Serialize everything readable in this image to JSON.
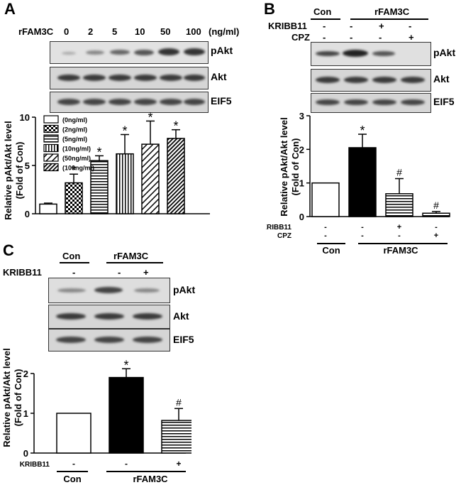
{
  "panels": {
    "A": {
      "letter": "A",
      "treatment_label": "rFAM3C",
      "doses": [
        "0",
        "2",
        "5",
        "10",
        "50",
        "100"
      ],
      "dose_unit": "(ng/ml)",
      "blot_labels": [
        "pAkt",
        "Akt",
        "EIF5"
      ],
      "ylabel_line1": "Relative pAkt/Akt level",
      "ylabel_line2": "(Fold of Con)"
    },
    "B": {
      "letter": "B",
      "con_label": "Con",
      "rfam3c_label": "rFAM3C",
      "kribb11_label": "KRIBB11",
      "cpz_label": "CPZ",
      "kribb11_signs": [
        "-",
        "-",
        "+",
        "-"
      ],
      "cpz_signs": [
        "-",
        "-",
        "-",
        "+"
      ],
      "blot_labels": [
        "pAkt",
        "Akt",
        "EIF5"
      ],
      "ylabel_line1": "Relative pAkt/Akt level",
      "ylabel_line2": "(Fold of Con)",
      "bottom_kribb11": "KRIBB11",
      "bottom_cpz": "CPZ",
      "bottom_con": "Con",
      "bottom_rfam3c": "rFAM3C"
    },
    "C": {
      "letter": "C",
      "con_label": "Con",
      "rfam3c_label": "rFAM3C",
      "kribb11_label": "KRIBB11",
      "kribb11_signs": [
        "-",
        "-",
        "+"
      ],
      "blot_labels": [
        "pAkt",
        "Akt",
        "EIF5"
      ],
      "ylabel_line1": "Relative pAkt/Akt level",
      "ylabel_line2": "(Fold of Con)",
      "bottom_kribb11": "KRIBB11",
      "bottom_con": "Con",
      "bottom_rfam3c": "rFAM3C"
    }
  },
  "chart_data": [
    {
      "panel": "A",
      "type": "bar",
      "categories": [
        "(0ng/ml)",
        "(2ng/ml)",
        "(5ng/ml)",
        "(10ng/ml)",
        "(50ng/ml)",
        "(100ng/ml)"
      ],
      "values": [
        1.0,
        3.2,
        5.5,
        6.2,
        7.2,
        7.8
      ],
      "errors": [
        0.1,
        0.9,
        0.5,
        2.0,
        2.4,
        0.9
      ],
      "annotations": [
        "",
        "*",
        "*",
        "*",
        "*",
        "*"
      ],
      "patterns": [
        "white",
        "checker",
        "hlines",
        "vlines",
        "diag",
        "diag-dense"
      ],
      "ylabel": "Relative pAkt/Akt level (Fold of Con)",
      "ylim": [
        0,
        10
      ],
      "yticks": [
        0,
        5,
        10
      ],
      "legend": "top-left"
    },
    {
      "panel": "B",
      "type": "bar",
      "categories": [
        "Con",
        "rFAM3C",
        "rFAM3C + KRIBB11",
        "rFAM3C + CPZ"
      ],
      "values": [
        1.0,
        2.05,
        0.68,
        0.1
      ],
      "errors": [
        0.0,
        0.4,
        0.45,
        0.05
      ],
      "annotations": [
        "",
        "*",
        "#",
        "#"
      ],
      "patterns": [
        "white",
        "black",
        "hlines",
        "hlines"
      ],
      "ylabel": "Relative pAkt/Akt level (Fold of Con)",
      "ylim": [
        0,
        3
      ],
      "yticks": [
        0,
        1,
        2,
        3
      ]
    },
    {
      "panel": "C",
      "type": "bar",
      "categories": [
        "Con",
        "rFAM3C",
        "rFAM3C + KRIBB11"
      ],
      "values": [
        1.0,
        1.9,
        0.82
      ],
      "errors": [
        0.0,
        0.22,
        0.3
      ],
      "annotations": [
        "",
        "*",
        "#"
      ],
      "patterns": [
        "white",
        "black",
        "hlines"
      ],
      "ylabel": "Relative pAkt/Akt level (Fold of Con)",
      "ylim": [
        0,
        2
      ],
      "yticks": [
        0,
        1,
        2
      ]
    }
  ]
}
